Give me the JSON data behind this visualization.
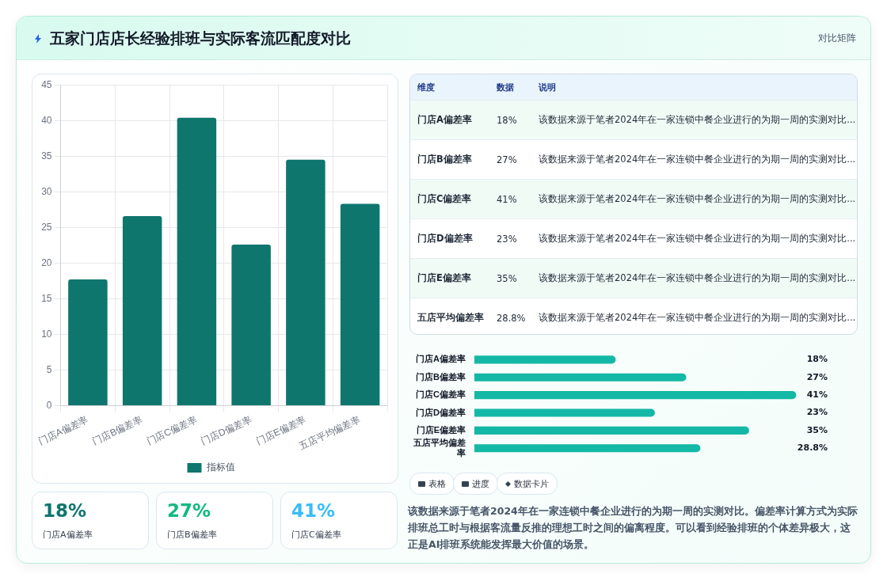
{
  "chart_data": [
    {
      "type": "bar",
      "title": "五家门店店长经验排班与实际客流匹配度对比",
      "annotations": [
        "对比矩阵"
      ],
      "categories": [
        "门店A偏差率",
        "门店B偏差率",
        "门店C偏差率",
        "门店D偏差率",
        "门店E偏差率",
        "五店平均偏差率"
      ],
      "series": [
        {
          "name": "指标值",
          "color": "#0f766e",
          "values": [
            17.7,
            26.6,
            40.4,
            22.6,
            34.5,
            28.3
          ]
        }
      ],
      "ylim": [
        0,
        45
      ],
      "yticks": [
        0,
        5,
        10,
        15,
        20,
        25,
        30,
        35,
        40,
        45
      ],
      "grid": true,
      "legend": "bottom"
    },
    {
      "type": "other",
      "annotations": [
        "维度",
        "数据",
        "说明",
        "门店A偏差率",
        "18%",
        "该数据来源于笔者2024年在一家连锁中餐企业进行的为期一周的实测对比...",
        "门店B偏差率",
        "27%",
        "该数据来源于笔者2024年在一家连锁中餐企业进行的为期一周的实测对比...",
        "门店C偏差率",
        "41%",
        "该数据来源于笔者2024年在一家连锁中餐企业进行的为期一周的实测对比...",
        "门店D偏差率",
        "23%",
        "该数据来源于笔者2024年在一家连锁中餐企业进行的为期一周的实测对比...",
        "门店E偏差率",
        "35%",
        "该数据来源于笔者2024年在一家连锁中餐企业进行的为期一周的实测对比...",
        "五店平均偏差率",
        "28.8%",
        "该数据来源于笔者2024年在一家连锁中餐企业进行的为期一周的实测对比..."
      ]
    },
    {
      "type": "bar",
      "orientation": "horizontal",
      "categories": [
        "门店A偏差率",
        "门店B偏差率",
        "门店C偏差率",
        "门店D偏差率",
        "门店E偏差率",
        "五店平均偏差率"
      ],
      "values": [
        18,
        27,
        41,
        23,
        35,
        28.8
      ],
      "value_labels": [
        "18%",
        "27%",
        "41%",
        "23%",
        "35%",
        "28.8%"
      ],
      "color": "#14b8a6",
      "tick_labels": "y"
    },
    {
      "type": "other",
      "annotations": [
        "18%",
        "门店A偏差率",
        "27%",
        "门店B偏差率",
        "41%",
        "门店C偏差率",
        "表格",
        "进度",
        "数据卡片",
        "该数据来源于笔者2024年在一家连锁中餐企业进行的为期一周的实测对比。偏差率计算方式为实际排班总工时与根据客流量反推的理想工时之间的偏离程度。可以看到经验排班的个体差异极大，这正是AI排班系统能发挥最大价值的场景。"
      ]
    }
  ]
}
